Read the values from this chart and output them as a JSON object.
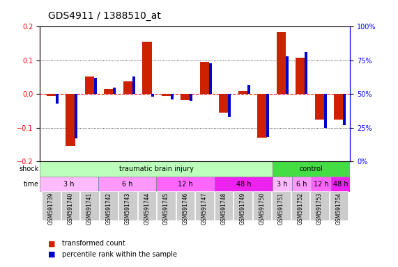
{
  "title": "GDS4911 / 1388510_at",
  "samples": [
    "GSM591739",
    "GSM591740",
    "GSM591741",
    "GSM591742",
    "GSM591743",
    "GSM591744",
    "GSM591745",
    "GSM591746",
    "GSM591747",
    "GSM591748",
    "GSM591749",
    "GSM591750",
    "GSM591751",
    "GSM591752",
    "GSM591753",
    "GSM591754"
  ],
  "red_values": [
    -0.005,
    -0.155,
    0.052,
    0.015,
    0.038,
    0.155,
    -0.005,
    -0.018,
    0.095,
    -0.055,
    0.008,
    -0.13,
    0.185,
    0.108,
    -0.075,
    -0.075
  ],
  "blue_values": [
    43,
    17,
    62,
    55,
    63,
    48,
    46,
    45,
    73,
    33,
    57,
    18,
    78,
    81,
    25,
    27
  ],
  "ylim_left": [
    -0.2,
    0.2
  ],
  "ylim_right": [
    0,
    100
  ],
  "shock_groups": [
    {
      "label": "traumatic brain injury",
      "start": 0,
      "end": 12,
      "color": "#aaffaa"
    },
    {
      "label": "control",
      "start": 12,
      "end": 16,
      "color": "#00dd00"
    }
  ],
  "time_groups": [
    {
      "label": "3 h",
      "start": 0,
      "end": 4,
      "color": "#ffaaff"
    },
    {
      "label": "6 h",
      "start": 4,
      "end": 8,
      "color": "#ff88ff"
    },
    {
      "label": "12 h",
      "start": 8,
      "end": 12,
      "color": "#ff55ff"
    },
    {
      "label": "48 h",
      "start": 12,
      "end": 16,
      "color": "#ff00ff"
    },
    {
      "label": "3 h",
      "start": 12,
      "end": 13,
      "color": "#ffaaff"
    },
    {
      "label": "6 h",
      "start": 13,
      "end": 14,
      "color": "#ff88ff"
    },
    {
      "label": "12 h",
      "start": 14,
      "end": 15,
      "color": "#ff55ff"
    },
    {
      "label": "48 h",
      "start": 15,
      "end": 16,
      "color": "#ff00ff"
    }
  ],
  "bar_color_red": "#cc2200",
  "bar_color_blue": "#0000cc",
  "dotted_line_color": "#000000",
  "zero_line_color": "#ff0000",
  "bg_color": "#ffffff",
  "grid_color": "#cccccc"
}
